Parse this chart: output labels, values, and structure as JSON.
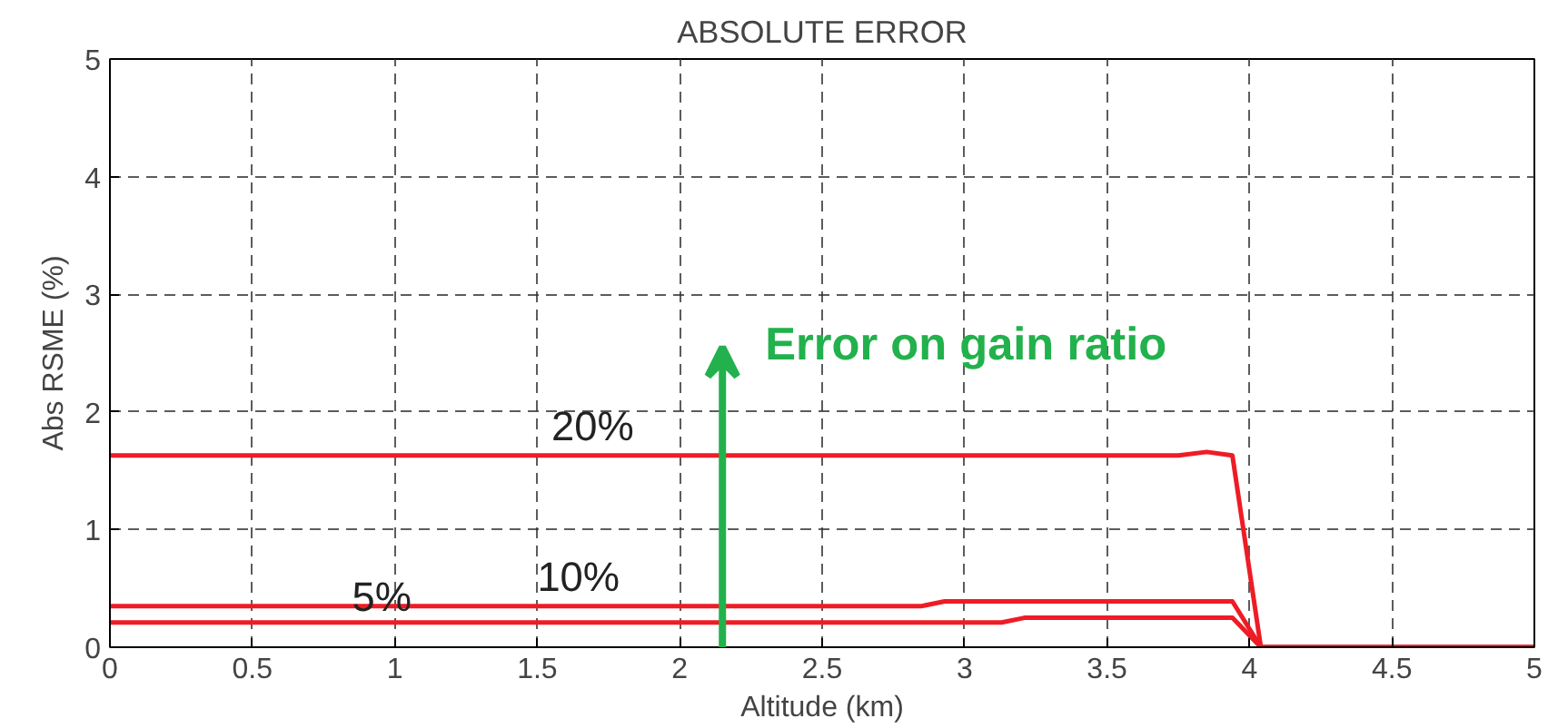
{
  "chart_data": {
    "type": "line",
    "title": "ABSOLUTE ERROR",
    "xlabel": "Altitude (km)",
    "ylabel": "Abs RSME (%)",
    "series": [
      {
        "name": "20%",
        "color": "#ee1c25",
        "x": [
          0,
          3.75,
          3.85,
          3.94,
          4.04,
          5
        ],
        "values": [
          1.63,
          1.63,
          1.66,
          1.63,
          0,
          0
        ]
      },
      {
        "name": "10%",
        "color": "#ee1c25",
        "x": [
          0,
          2.85,
          2.93,
          3.94,
          4.04,
          5
        ],
        "values": [
          0.35,
          0.35,
          0.39,
          0.39,
          0,
          0
        ]
      },
      {
        "name": "5%",
        "color": "#ee1c25",
        "x": [
          0,
          3.13,
          3.21,
          3.94,
          4.04,
          5
        ],
        "values": [
          0.21,
          0.21,
          0.25,
          0.25,
          0,
          0
        ]
      }
    ],
    "annotations": [
      "Error on gain ratio"
    ],
    "xlim": [
      0,
      5
    ],
    "ylim": [
      0,
      5
    ],
    "xticks": [
      0,
      0.5,
      1,
      1.5,
      2,
      2.5,
      3,
      3.5,
      4,
      4.5,
      5
    ],
    "yticks": [
      0,
      1,
      2,
      3,
      4,
      5
    ],
    "grid": true,
    "legend": false,
    "marker": "none",
    "line_style": "solid"
  }
}
